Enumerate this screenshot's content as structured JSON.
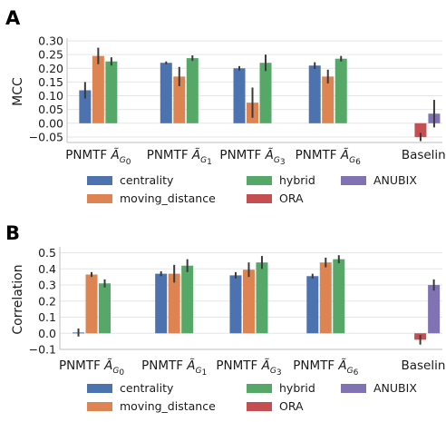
{
  "colors": {
    "centrality": "#4c72b0",
    "moving_distance": "#dd8452",
    "hybrid": "#55a868",
    "ORA": "#c44e52",
    "ANUBIX": "#8172b3"
  },
  "legend": {
    "entries": [
      "centrality",
      "moving_distance",
      "hybrid",
      "ORA",
      "ANUBIX"
    ],
    "placement": "below-plot"
  },
  "chart_data": [
    {
      "panel": "A",
      "type": "bar",
      "ylabel": "MCC",
      "ylim": [
        -0.07,
        0.3
      ],
      "yticks": [
        -0.05,
        0.0,
        0.05,
        0.1,
        0.15,
        0.2,
        0.25,
        0.3
      ],
      "ytick_labels": [
        "−0.05",
        "0.00",
        "0.05",
        "0.10",
        "0.15",
        "0.20",
        "0.25",
        "0.30"
      ],
      "grid": true,
      "categories": [
        {
          "prefix": "PNMTF",
          "sub": "0"
        },
        {
          "prefix": "PNMTF",
          "sub": "1"
        },
        {
          "prefix": "PNMTF",
          "sub": "3"
        },
        {
          "prefix": "PNMTF",
          "sub": "6"
        },
        {
          "prefix": "Baseline",
          "sub": ""
        }
      ],
      "series": [
        {
          "name": "centrality",
          "values": [
            0.12,
            0.22,
            0.2,
            0.21,
            null
          ],
          "err": [
            0.03,
            0.005,
            0.008,
            0.012,
            null
          ]
        },
        {
          "name": "moving_distance",
          "values": [
            0.245,
            0.17,
            0.075,
            0.17,
            null
          ],
          "err": [
            0.03,
            0.035,
            0.055,
            0.025,
            null
          ]
        },
        {
          "name": "hybrid",
          "values": [
            0.225,
            0.237,
            0.22,
            0.235,
            null
          ],
          "err": [
            0.015,
            0.01,
            0.03,
            0.01,
            null
          ]
        },
        {
          "name": "ORA",
          "values": [
            null,
            null,
            null,
            null,
            -0.05
          ],
          "err": [
            null,
            null,
            null,
            null,
            0.015
          ]
        },
        {
          "name": "ANUBIX",
          "values": [
            null,
            null,
            null,
            null,
            0.035
          ],
          "err": [
            null,
            null,
            null,
            null,
            0.05
          ]
        }
      ]
    },
    {
      "panel": "B",
      "type": "bar",
      "ylabel": "Correlation",
      "ylim": [
        -0.1,
        0.52
      ],
      "yticks": [
        -0.1,
        0.0,
        0.1,
        0.2,
        0.3,
        0.4,
        0.5
      ],
      "ytick_labels": [
        "−0.1",
        "0.0",
        "0.1",
        "0.2",
        "0.3",
        "0.4",
        "0.5"
      ],
      "grid": true,
      "categories": [
        {
          "prefix": "PNMTF",
          "sub": "0"
        },
        {
          "prefix": "PNMTF",
          "sub": "1"
        },
        {
          "prefix": "PNMTF",
          "sub": "3"
        },
        {
          "prefix": "PNMTF",
          "sub": "6"
        },
        {
          "prefix": "Baseline",
          "sub": ""
        }
      ],
      "series": [
        {
          "name": "centrality",
          "values": [
            0.005,
            0.37,
            0.36,
            0.355,
            null
          ],
          "err": [
            0.025,
            0.015,
            0.02,
            0.015,
            null
          ]
        },
        {
          "name": "moving_distance",
          "values": [
            0.365,
            0.37,
            0.395,
            0.44,
            null
          ],
          "err": [
            0.015,
            0.055,
            0.045,
            0.03,
            null
          ]
        },
        {
          "name": "hybrid",
          "values": [
            0.31,
            0.42,
            0.44,
            0.46,
            null
          ],
          "err": [
            0.025,
            0.04,
            0.04,
            0.025,
            null
          ]
        },
        {
          "name": "ORA",
          "values": [
            null,
            null,
            null,
            null,
            -0.04
          ],
          "err": [
            null,
            null,
            null,
            null,
            0.03
          ]
        },
        {
          "name": "ANUBIX",
          "values": [
            null,
            null,
            null,
            null,
            0.3
          ],
          "err": [
            null,
            null,
            null,
            null,
            0.035
          ]
        }
      ]
    }
  ],
  "panels": [
    "A",
    "B"
  ]
}
